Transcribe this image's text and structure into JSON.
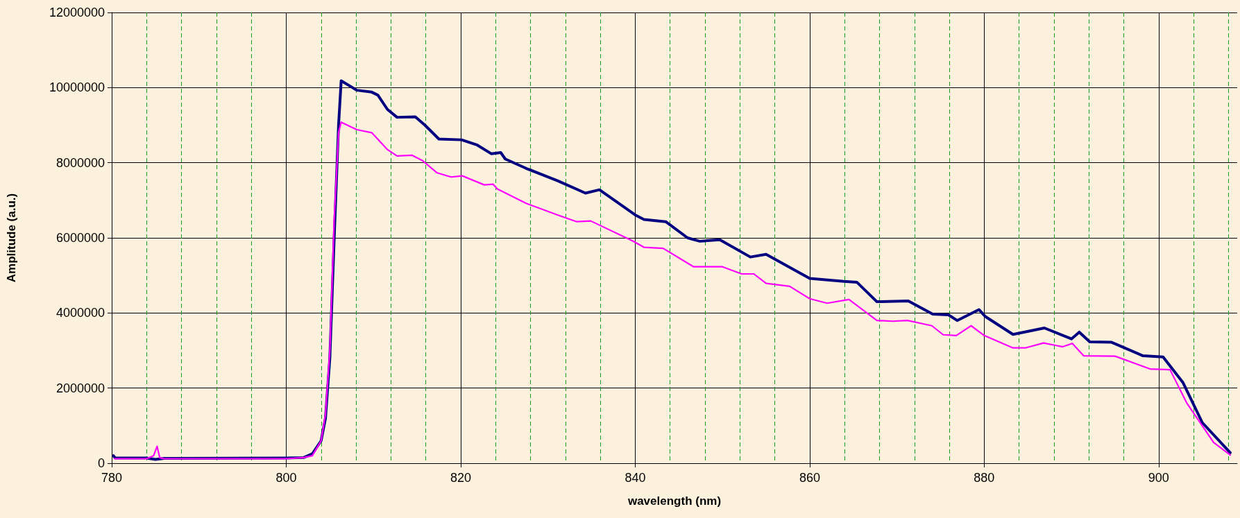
{
  "chart_data": {
    "type": "line",
    "xlabel": "wavelength (nm)",
    "ylabel": "Amplitude (a.u.)",
    "xlim": [
      780,
      909
    ],
    "xticks": [
      780,
      {
        "value": 784,
        "label": null
      },
      {
        "value": 788,
        "label": null
      },
      {
        "value": 792,
        "label": null
      },
      {
        "value": 796,
        "label": null
      },
      800,
      {
        "value": 804,
        "label": null
      },
      {
        "value": 808,
        "label": null
      },
      {
        "value": 812,
        "label": null
      },
      {
        "value": 816,
        "label": null
      },
      820,
      {
        "value": 824,
        "label": null
      },
      {
        "value": 828,
        "label": null
      },
      {
        "value": 832,
        "label": null
      },
      {
        "value": 836,
        "label": null
      },
      840,
      {
        "value": 844,
        "label": null
      },
      {
        "value": 848,
        "label": null
      },
      {
        "value": 852,
        "label": null
      },
      {
        "value": 856,
        "label": null
      },
      860,
      {
        "value": 864,
        "label": null
      },
      {
        "value": 868,
        "label": null
      },
      {
        "value": 872,
        "label": null
      },
      {
        "value": 876,
        "label": null
      },
      880,
      {
        "value": 884,
        "label": null
      },
      {
        "value": 888,
        "label": null
      },
      {
        "value": 892,
        "label": null
      },
      {
        "value": 896,
        "label": null
      },
      900,
      {
        "value": 904,
        "label": null
      },
      {
        "value": 908,
        "label": null
      }
    ],
    "ylim": [
      0,
      12000000
    ],
    "yticks": [
      0,
      2000000,
      4000000,
      6000000,
      8000000,
      10000000,
      12000000
    ],
    "grid": true,
    "marker": "none",
    "line_style": "solid",
    "series": [
      {
        "color": "#000080",
        "x": [
          780.2,
          780.4,
          784,
          785,
          786,
          800,
          802,
          803,
          804,
          804.5,
          805,
          805.5,
          806,
          806.3,
          808.1,
          809.8,
          810.5,
          811.6,
          812.7,
          814.8,
          815.9,
          817.5,
          820.1,
          821.9,
          823.5,
          824.6,
          825.1,
          827.5,
          831.1,
          834.3,
          835.9,
          840,
          841,
          843.5,
          846,
          847.4,
          849.7,
          853.2,
          855,
          860,
          863.9,
          865.4,
          867.7,
          871.3,
          874.1,
          875.9,
          876.9,
          879.4,
          880.1,
          883.3,
          886.9,
          890,
          890.9,
          892.1,
          894.6,
          898.2,
          900.5,
          902.8,
          905,
          908.2
        ],
        "values": [
          200000,
          140000,
          140000,
          100000,
          130000,
          140000,
          150000,
          250000,
          600000,
          1200000,
          2800000,
          6000000,
          9000000,
          10180000,
          9930000,
          9880000,
          9800000,
          9420000,
          9210000,
          9220000,
          9000000,
          8630000,
          8610000,
          8470000,
          8240000,
          8270000,
          8100000,
          7850000,
          7520000,
          7190000,
          7280000,
          6610000,
          6490000,
          6430000,
          6000000,
          5910000,
          5950000,
          5490000,
          5560000,
          4920000,
          4840000,
          4820000,
          4300000,
          4320000,
          3970000,
          3950000,
          3800000,
          4090000,
          3910000,
          3430000,
          3600000,
          3310000,
          3490000,
          3230000,
          3220000,
          2860000,
          2830000,
          2140000,
          1080000,
          280000
        ]
      },
      {
        "color": "#ff00ff",
        "x": [
          780.3,
          784,
          784.8,
          785.2,
          785.5,
          786,
          800,
          802,
          803,
          804,
          804.5,
          805,
          805.5,
          806,
          806.3,
          808.1,
          809.8,
          811.6,
          812.7,
          814.4,
          815.6,
          817.3,
          818.9,
          820.2,
          822.7,
          823.7,
          824.2,
          827.5,
          831.1,
          833.3,
          834.9,
          839.6,
          841,
          843.2,
          846.7,
          850,
          852.2,
          853.6,
          855,
          857.7,
          860,
          862,
          864.5,
          867.7,
          869.5,
          871.2,
          874,
          875.3,
          876.8,
          878.5,
          880,
          883.3,
          884.7,
          886.8,
          889,
          890.1,
          891.4,
          895,
          899,
          901.3,
          903.2,
          906.3,
          908.2
        ],
        "values": [
          120000,
          120000,
          200000,
          450000,
          150000,
          120000,
          120000,
          150000,
          200000,
          600000,
          1300000,
          3000000,
          6500000,
          8800000,
          9080000,
          8880000,
          8800000,
          8350000,
          8180000,
          8200000,
          8060000,
          7730000,
          7620000,
          7650000,
          7410000,
          7430000,
          7300000,
          6920000,
          6610000,
          6430000,
          6450000,
          5930000,
          5750000,
          5720000,
          5230000,
          5230000,
          5040000,
          5040000,
          4790000,
          4710000,
          4380000,
          4260000,
          4360000,
          3800000,
          3780000,
          3800000,
          3660000,
          3420000,
          3400000,
          3660000,
          3400000,
          3070000,
          3070000,
          3200000,
          3100000,
          3190000,
          2860000,
          2850000,
          2510000,
          2490000,
          1610000,
          550000,
          220000
        ]
      }
    ]
  }
}
